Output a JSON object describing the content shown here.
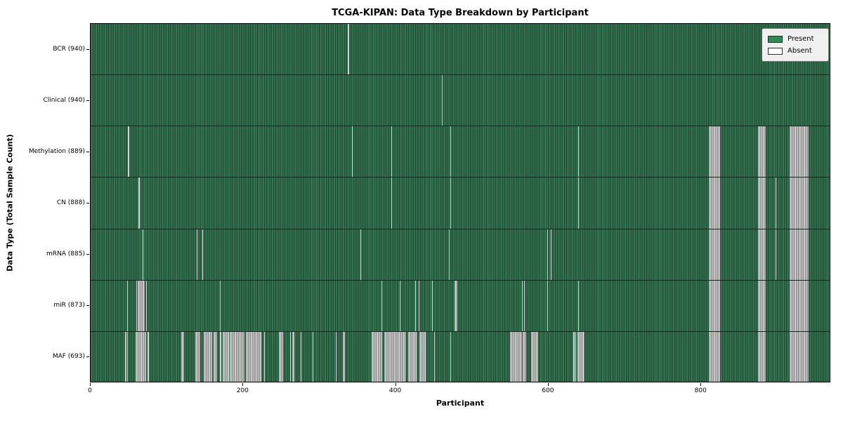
{
  "title": "TCGA-KIPAN: Data Type Breakdown by Participant",
  "chart_data": {
    "type": "heatmap",
    "title": "TCGA-KIPAN: Data Type Breakdown by Participant",
    "xlabel": "Participant",
    "ylabel": "Data Type (Total Sample Count)",
    "x_range": [
      0,
      970
    ],
    "x_ticks": [
      "0",
      "200",
      "400",
      "600",
      "800"
    ],
    "grid": false,
    "legend_position": "upper right",
    "legend": [
      {
        "label": "Present",
        "color": "#2e8b57"
      },
      {
        "label": "Absent",
        "color": "#ffffff"
      }
    ],
    "colors": {
      "present_green": "#2e8b57",
      "present_dark_edge": "#1d4731",
      "absent_gray": "#ababab",
      "absent_white": "#ffffff",
      "row_divider": "#16281d"
    },
    "rows": [
      {
        "label": "BCR (940)",
        "data_type": "BCR",
        "total_sample_count": 940,
        "absent_ranges": [
          [
            337,
            339
          ]
        ]
      },
      {
        "label": "Clinical (940)",
        "data_type": "Clinical",
        "total_sample_count": 940,
        "absent_ranges": [
          [
            460,
            461
          ]
        ]
      },
      {
        "label": "Methylation (889)",
        "data_type": "Methylation",
        "total_sample_count": 889,
        "absent_ranges": [
          [
            49,
            51
          ],
          [
            342,
            343
          ],
          [
            394,
            395
          ],
          [
            471,
            472
          ],
          [
            639,
            640
          ],
          [
            810,
            825
          ],
          [
            874,
            884
          ],
          [
            916,
            941
          ]
        ]
      },
      {
        "label": "CN (888)",
        "data_type": "CN",
        "total_sample_count": 888,
        "absent_ranges": [
          [
            63,
            64
          ],
          [
            394,
            395
          ],
          [
            471,
            472
          ],
          [
            639,
            640
          ],
          [
            810,
            825
          ],
          [
            874,
            884
          ],
          [
            897,
            898
          ],
          [
            916,
            941
          ]
        ]
      },
      {
        "label": "mRNA (885)",
        "data_type": "mRNA",
        "total_sample_count": 885,
        "absent_ranges": [
          [
            68,
            69
          ],
          [
            139,
            140
          ],
          [
            146,
            147
          ],
          [
            353,
            354
          ],
          [
            469,
            470
          ],
          [
            598,
            599
          ],
          [
            603,
            604
          ],
          [
            810,
            825
          ],
          [
            874,
            884
          ],
          [
            897,
            898
          ],
          [
            916,
            941
          ]
        ]
      },
      {
        "label": "miR (873)",
        "data_type": "miR",
        "total_sample_count": 873,
        "absent_ranges": [
          [
            48,
            49
          ],
          [
            60,
            61
          ],
          [
            62,
            71
          ],
          [
            73,
            74
          ],
          [
            169,
            170
          ],
          [
            381,
            382
          ],
          [
            405,
            406
          ],
          [
            425,
            426
          ],
          [
            430,
            431
          ],
          [
            447,
            448
          ],
          [
            477,
            480
          ],
          [
            565,
            566
          ],
          [
            568,
            569
          ],
          [
            598,
            599
          ],
          [
            639,
            640
          ],
          [
            810,
            825
          ],
          [
            874,
            884
          ],
          [
            916,
            941
          ]
        ]
      },
      {
        "label": "MAF (693)",
        "data_type": "MAF",
        "total_sample_count": 693,
        "absent_ranges": [
          [
            45,
            47
          ],
          [
            48,
            49
          ],
          [
            59,
            73
          ],
          [
            75,
            76
          ],
          [
            119,
            122
          ],
          [
            137,
            144
          ],
          [
            148,
            159
          ],
          [
            161,
            166
          ],
          [
            169,
            171
          ],
          [
            173,
            181
          ],
          [
            182,
            202
          ],
          [
            203,
            224
          ],
          [
            227,
            228
          ],
          [
            247,
            252
          ],
          [
            261,
            262
          ],
          [
            264,
            267
          ],
          [
            275,
            276
          ],
          [
            291,
            292
          ],
          [
            321,
            322
          ],
          [
            330,
            333
          ],
          [
            368,
            382
          ],
          [
            385,
            413
          ],
          [
            416,
            428
          ],
          [
            431,
            439
          ],
          [
            450,
            451
          ],
          [
            471,
            472
          ],
          [
            549,
            565
          ],
          [
            566,
            571
          ],
          [
            577,
            586
          ],
          [
            632,
            634
          ],
          [
            635,
            636
          ],
          [
            638,
            647
          ],
          [
            810,
            825
          ],
          [
            874,
            884
          ],
          [
            916,
            941
          ]
        ]
      }
    ]
  }
}
